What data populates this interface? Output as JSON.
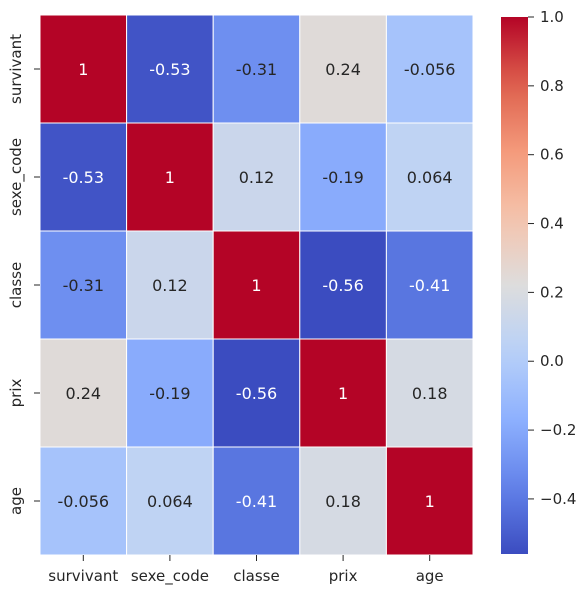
{
  "chart_data": {
    "type": "heatmap",
    "rows": [
      "survivant",
      "sexe_code",
      "classe",
      "prix",
      "age"
    ],
    "columns": [
      "survivant",
      "sexe_code",
      "classe",
      "prix",
      "age"
    ],
    "values": [
      [
        1,
        -0.53,
        -0.31,
        0.24,
        -0.056
      ],
      [
        -0.53,
        1,
        0.12,
        -0.19,
        0.064
      ],
      [
        -0.31,
        0.12,
        1,
        -0.56,
        -0.41
      ],
      [
        0.24,
        -0.19,
        -0.56,
        1,
        0.18
      ],
      [
        -0.056,
        0.064,
        -0.41,
        0.18,
        1
      ]
    ],
    "cell_labels": [
      [
        "1",
        "-0.53",
        "-0.31",
        "0.24",
        "-0.056"
      ],
      [
        "-0.53",
        "1",
        "0.12",
        "-0.19",
        "0.064"
      ],
      [
        "-0.31",
        "0.12",
        "1",
        "-0.56",
        "-0.41"
      ],
      [
        "0.24",
        "-0.19",
        "-0.56",
        "1",
        "0.18"
      ],
      [
        "-0.056",
        "0.064",
        "-0.41",
        "0.18",
        "1"
      ]
    ],
    "colormap": "coolwarm",
    "color_range": [
      -0.56,
      1.0
    ],
    "colorbar_ticks": [
      1.0,
      0.8,
      0.6,
      0.4,
      0.2,
      0.0,
      -0.2,
      -0.4
    ],
    "colorbar_tick_labels": [
      "1.0",
      "0.8",
      "0.6",
      "0.4",
      "0.2",
      "0.0",
      "−0.2",
      "−0.4"
    ],
    "title": "",
    "xlabel": "",
    "ylabel": "",
    "colors": {
      "low": "#3b4cc0",
      "mid": "#dddddd",
      "high": "#b40426",
      "text_dark": "#262626",
      "text_light": "#ffffff"
    }
  }
}
